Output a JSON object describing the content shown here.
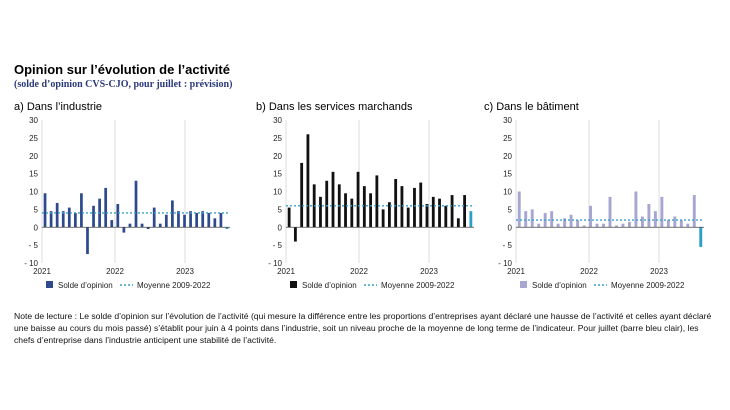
{
  "title": "Opinion sur l’évolution de l’activité",
  "subtitle": "(solde d’opinion CVS-CJO, pour juillet : prévision)",
  "note": "Note de lecture : Le solde d’opinion sur l’évolution de l’activité (qui mesure la différence entre les proportions d’entreprises ayant déclaré une hausse de l’activité et celles ayant déclaré une baisse au cours du mois passé) s’établit pour juin à 4 points dans l’industrie, soit un niveau proche de la moyenne de long terme de l’indicateur. Pour juillet (barre bleu clair), les chefs d’entreprise dans l’industrie anticipent une stabilité de l’activité.",
  "colors": {
    "forecast": "#2aa0c8",
    "mean_line": "#3aa0c8",
    "axis": "#444444"
  },
  "chart_data": [
    {
      "type": "bar",
      "panel_title": "a) Dans l’industrie",
      "color": "#2e4a8c",
      "legend_bar": "Solde d’opinion",
      "legend_line": "Moyenne 2009-2022",
      "ylim": [
        -10,
        30
      ],
      "yticks": [
        "30",
        "25",
        "20",
        "15",
        "10",
        "5",
        "0",
        "- 5",
        "- 10"
      ],
      "xticks": [
        "2021",
        "2022",
        "2023"
      ],
      "mean": 4,
      "values": [
        9.5,
        4.5,
        6.8,
        4.5,
        5.5,
        4.0,
        9.5,
        -7.5,
        6.0,
        8.0,
        11.0,
        2.0,
        6.5,
        -1.5,
        1.0,
        13.0,
        1.0,
        -0.5,
        5.5,
        1.0,
        3.5,
        7.5,
        4.5,
        3.5,
        4.5,
        4.0,
        4.5,
        4.0,
        2.5,
        4.0,
        -0.5
      ]
    },
    {
      "type": "bar",
      "panel_title": "b) Dans les services marchands",
      "color": "#111111",
      "legend_bar": "Solde d’opinion",
      "legend_line": "Moyenne 2009-2022",
      "ylim": [
        -10,
        30
      ],
      "yticks": [
        "30",
        "25",
        "20",
        "15",
        "10",
        "5",
        "0",
        "- 5",
        "- 10"
      ],
      "xticks": [
        "2021",
        "2022",
        "2023"
      ],
      "mean": 6,
      "values": [
        5.5,
        -4.0,
        18.0,
        26.0,
        12.0,
        8.5,
        13.0,
        15.5,
        12.0,
        9.5,
        8.0,
        15.5,
        11.5,
        9.5,
        14.5,
        5.0,
        7.0,
        13.5,
        11.5,
        5.5,
        11.0,
        12.5,
        6.5,
        8.5,
        8.0,
        6.0,
        9.0,
        2.5,
        9.0,
        4.5
      ]
    },
    {
      "type": "bar",
      "panel_title": "c) Dans le bâtiment",
      "color": "#a6a6d2",
      "legend_bar": "Solde d’opinion",
      "legend_line": "Moyenne 2009-2022",
      "ylim": [
        -10,
        30
      ],
      "yticks": [
        "30",
        "25",
        "20",
        "15",
        "10",
        "5",
        "0",
        "- 5",
        "- 10"
      ],
      "xticks": [
        "2021",
        "2022",
        "2023"
      ],
      "mean": 2,
      "values": [
        10.0,
        4.5,
        5.0,
        1.0,
        4.0,
        4.5,
        1.0,
        2.5,
        3.5,
        2.0,
        0.5,
        6.0,
        1.0,
        1.0,
        8.5,
        0.5,
        1.0,
        1.5,
        10.0,
        3.0,
        6.5,
        4.5,
        8.5,
        2.0,
        3.0,
        2.0,
        1.0,
        9.0,
        -5.5
      ]
    }
  ]
}
